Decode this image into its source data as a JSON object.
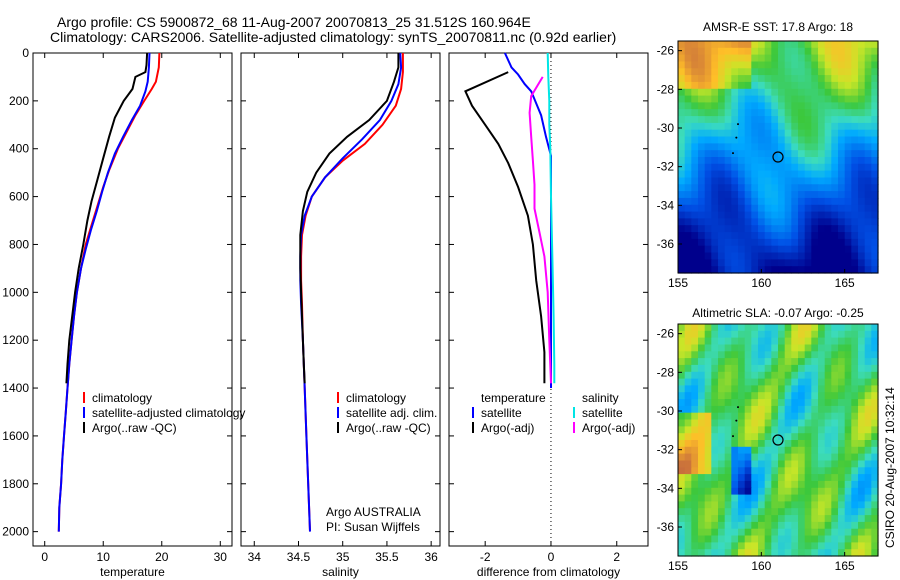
{
  "header": {
    "line1": "Argo profile: CS 5900872_68 11-Aug-2007 20070813_25 31.512S 160.964E",
    "line2": "Climatology: CARS2006. Satellite-adjusted climatology: synTS_20070811.nc (0.92d earlier)"
  },
  "side_label": "CSIRO 20-Aug-2007 10:32:14",
  "colors": {
    "clim": "#ff0000",
    "sat": "#0000ff",
    "argo": "#000000",
    "sat_sal": "#00e5e5",
    "argo_sal": "#ff00ff"
  },
  "chart_data": [
    {
      "type": "line",
      "xlabel": "temperature",
      "xticks": [
        "0",
        "10",
        "20",
        "30"
      ],
      "yticks": [
        "0",
        "200",
        "400",
        "600",
        "800",
        "1000",
        "1200",
        "1400",
        "1600",
        "1800",
        "2000"
      ],
      "xlim": [
        -2,
        32
      ],
      "ylim": [
        0,
        2060
      ],
      "legend": [
        "climatology",
        "satellite-adjusted climatology",
        "Argo(..raw -QC)"
      ],
      "series": [
        {
          "name": "climatology",
          "color": "clim",
          "points": [
            [
              19.6,
              0
            ],
            [
              19.5,
              60
            ],
            [
              19.0,
              120
            ],
            [
              18.3,
              150
            ],
            [
              17,
              200
            ],
            [
              15.5,
              260
            ],
            [
              14,
              330
            ],
            [
              12.5,
              400
            ],
            [
              11,
              490
            ],
            [
              10,
              560
            ],
            [
              9,
              640
            ],
            [
              8,
              720
            ],
            [
              7,
              800
            ],
            [
              6.2,
              900
            ],
            [
              5.5,
              1000
            ],
            [
              5,
              1100
            ],
            [
              4.6,
              1200
            ],
            [
              4.2,
              1300
            ],
            [
              3.9,
              1400
            ],
            [
              3.6,
              1500
            ],
            [
              3.3,
              1600
            ],
            [
              3.0,
              1700
            ],
            [
              2.8,
              1800
            ],
            [
              2.5,
              1900
            ],
            [
              2.4,
              2000
            ]
          ]
        },
        {
          "name": "satellite-adjusted climatology",
          "color": "sat",
          "points": [
            [
              17.9,
              0
            ],
            [
              17.8,
              60
            ],
            [
              17.6,
              120
            ],
            [
              17.2,
              160
            ],
            [
              16.3,
              220
            ],
            [
              14.9,
              280
            ],
            [
              13.4,
              350
            ],
            [
              12,
              420
            ],
            [
              10.8,
              500
            ],
            [
              9.8,
              580
            ],
            [
              8.9,
              660
            ],
            [
              7.9,
              740
            ],
            [
              7.0,
              820
            ],
            [
              6.2,
              900
            ],
            [
              5.5,
              1000
            ],
            [
              5,
              1100
            ],
            [
              4.6,
              1200
            ],
            [
              4.2,
              1300
            ],
            [
              3.9,
              1400
            ],
            [
              3.6,
              1500
            ],
            [
              3.3,
              1600
            ],
            [
              3.0,
              1700
            ],
            [
              2.8,
              1800
            ],
            [
              2.5,
              1900
            ],
            [
              2.4,
              2000
            ]
          ]
        },
        {
          "name": "Argo(..raw -QC)",
          "color": "argo",
          "points": [
            [
              17.5,
              0
            ],
            [
              17.4,
              50
            ],
            [
              17.2,
              80
            ],
            [
              15.5,
              100
            ],
            [
              15,
              150
            ],
            [
              13.5,
              200
            ],
            [
              12,
              270
            ],
            [
              11,
              350
            ],
            [
              10,
              440
            ],
            [
              9,
              530
            ],
            [
              8,
              620
            ],
            [
              7.3,
              700
            ],
            [
              6.6,
              800
            ],
            [
              5.8,
              900
            ],
            [
              5.2,
              1000
            ],
            [
              4.7,
              1100
            ],
            [
              4.2,
              1200
            ],
            [
              3.9,
              1300
            ],
            [
              3.7,
              1380
            ]
          ]
        }
      ]
    },
    {
      "type": "line",
      "xlabel": "salinity",
      "xticks": [
        "34",
        "34.5",
        "35",
        "35.5",
        "36"
      ],
      "yticks": [],
      "xlim": [
        33.85,
        36.1
      ],
      "ylim": [
        0,
        2060
      ],
      "legend": [
        "climatology",
        "satellite adj. clim.",
        "Argo(..raw -QC)"
      ],
      "annotation": [
        "Argo AUSTRALIA",
        "PI: Susan Wijffels"
      ],
      "series": [
        {
          "name": "climatology",
          "color": "clim",
          "points": [
            [
              35.68,
              0
            ],
            [
              35.68,
              80
            ],
            [
              35.66,
              150
            ],
            [
              35.6,
              220
            ],
            [
              35.45,
              300
            ],
            [
              35.25,
              380
            ],
            [
              35.0,
              450
            ],
            [
              34.8,
              520
            ],
            [
              34.65,
              600
            ],
            [
              34.58,
              680
            ],
            [
              34.54,
              760
            ],
            [
              34.53,
              850
            ],
            [
              34.53,
              950
            ],
            [
              34.54,
              1050
            ],
            [
              34.55,
              1200
            ],
            [
              34.57,
              1400
            ],
            [
              34.59,
              1600
            ],
            [
              34.61,
              1800
            ],
            [
              34.63,
              2000
            ]
          ]
        },
        {
          "name": "satellite adj. clim.",
          "color": "sat",
          "points": [
            [
              35.65,
              0
            ],
            [
              35.66,
              60
            ],
            [
              35.63,
              130
            ],
            [
              35.55,
              200
            ],
            [
              35.42,
              280
            ],
            [
              35.22,
              360
            ],
            [
              35.0,
              440
            ],
            [
              34.8,
              520
            ],
            [
              34.65,
              600
            ],
            [
              34.57,
              680
            ],
            [
              34.53,
              760
            ],
            [
              34.52,
              850
            ],
            [
              34.52,
              950
            ],
            [
              34.53,
              1050
            ],
            [
              34.55,
              1200
            ],
            [
              34.57,
              1400
            ],
            [
              34.59,
              1600
            ],
            [
              34.61,
              1800
            ],
            [
              34.63,
              2000
            ]
          ]
        },
        {
          "name": "Argo(..raw -QC)",
          "color": "argo",
          "points": [
            [
              35.63,
              0
            ],
            [
              35.63,
              60
            ],
            [
              35.58,
              120
            ],
            [
              35.5,
              200
            ],
            [
              35.3,
              280
            ],
            [
              35.05,
              350
            ],
            [
              34.85,
              420
            ],
            [
              34.7,
              500
            ],
            [
              34.6,
              580
            ],
            [
              34.55,
              660
            ],
            [
              34.52,
              760
            ],
            [
              34.52,
              900
            ],
            [
              34.53,
              1000
            ],
            [
              34.54,
              1100
            ],
            [
              34.55,
              1200
            ],
            [
              34.56,
              1300
            ],
            [
              34.57,
              1380
            ]
          ]
        }
      ]
    },
    {
      "type": "line",
      "xlabel": "difference from climatology",
      "xticks": [
        "-2",
        "0",
        "2"
      ],
      "yticks": [],
      "xlim": [
        -3.1,
        2.95
      ],
      "ylim": [
        0,
        2060
      ],
      "legend_left_title": "temperature",
      "legend_left": [
        "satellite",
        "Argo(-adj)"
      ],
      "legend_right_title": "salinity",
      "legend_right": [
        "satellite",
        "Argo(-adj)"
      ],
      "series": [
        {
          "name": "temperature satellite",
          "color": "sat",
          "points": [
            [
              -1.4,
              0
            ],
            [
              -1.2,
              60
            ],
            [
              -1.0,
              90
            ],
            [
              -0.8,
              130
            ],
            [
              -0.6,
              160
            ],
            [
              -0.3,
              260
            ],
            [
              -0.15,
              350
            ],
            [
              0,
              430
            ],
            [
              0,
              600
            ],
            [
              0,
              900
            ],
            [
              0,
              1200
            ],
            [
              0,
              1400
            ]
          ]
        },
        {
          "name": "temperature Argo(-adj)",
          "color": "argo",
          "points": [
            [
              -1.3,
              80
            ],
            [
              -2.6,
              160
            ],
            [
              -2.4,
              220
            ],
            [
              -2.0,
              300
            ],
            [
              -1.6,
              380
            ],
            [
              -1.3,
              460
            ],
            [
              -1.0,
              560
            ],
            [
              -0.7,
              680
            ],
            [
              -0.55,
              800
            ],
            [
              -0.45,
              950
            ],
            [
              -0.3,
              1100
            ],
            [
              -0.2,
              1250
            ],
            [
              -0.2,
              1380
            ]
          ]
        },
        {
          "name": "salinity satellite",
          "color": "sat_sal",
          "points": [
            [
              -0.1,
              0
            ],
            [
              -0.08,
              100
            ],
            [
              -0.05,
              200
            ],
            [
              -0.05,
              300
            ],
            [
              -0.02,
              400
            ],
            [
              0,
              600
            ],
            [
              0.05,
              900
            ],
            [
              0.08,
              1100
            ],
            [
              0.1,
              1300
            ],
            [
              0.1,
              1380
            ]
          ]
        },
        {
          "name": "salinity Argo(-adj)",
          "color": "argo_sal",
          "points": [
            [
              -0.25,
              100
            ],
            [
              -0.6,
              180
            ],
            [
              -0.65,
              250
            ],
            [
              -0.6,
              350
            ],
            [
              -0.55,
              450
            ],
            [
              -0.5,
              550
            ],
            [
              -0.5,
              650
            ],
            [
              -0.35,
              750
            ],
            [
              -0.2,
              850
            ],
            [
              -0.1,
              1000
            ],
            [
              -0.05,
              1200
            ],
            [
              0,
              1380
            ]
          ]
        }
      ]
    }
  ],
  "maps": [
    {
      "title": "AMSR-E SST: 17.8 Argo: 18",
      "xticks": [
        "155",
        "160",
        "165"
      ],
      "yticks": [
        "-26",
        "-28",
        "-30",
        "-32",
        "-34",
        "-36"
      ],
      "lon_range": [
        155,
        167
      ],
      "lat_range": [
        -37.5,
        -25.5
      ],
      "marker": [
        161,
        -31.5
      ]
    },
    {
      "title": "Altimetric SLA: -0.07 Argo: -0.25",
      "xticks": [
        "155",
        "160",
        "165"
      ],
      "yticks": [
        "-26",
        "-28",
        "-30",
        "-32",
        "-34",
        "-36"
      ],
      "lon_range": [
        155,
        167
      ],
      "lat_range": [
        -37.5,
        -25.5
      ],
      "marker": [
        161,
        -31.5
      ]
    }
  ]
}
